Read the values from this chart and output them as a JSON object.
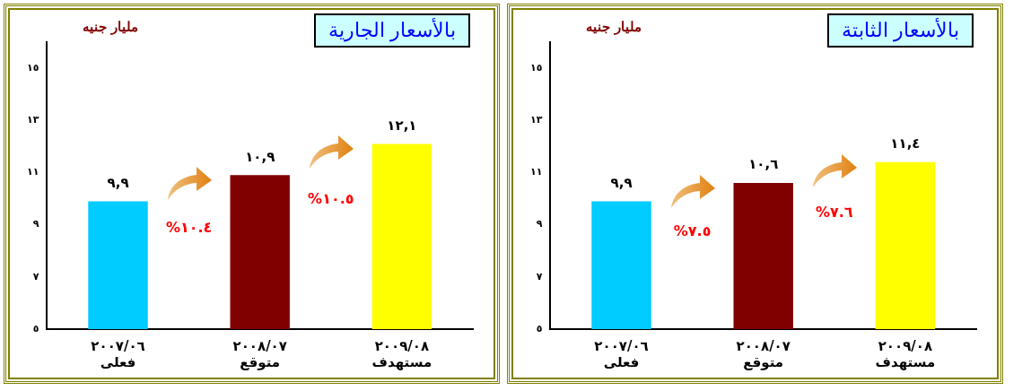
{
  "chart_data": [
    {
      "type": "bar",
      "title": "بالأسعار الجارية",
      "ylabel": "مليار جنيه",
      "categories": [
        "٢٠٠٧/٠٦\nفعلى",
        "٢٠٠٨/٠٧\nمتوقع",
        "٢٠٠٩/٠٨\nمستهدف"
      ],
      "values": [
        9.9,
        10.9,
        12.1
      ],
      "value_labels": [
        "٩,٩",
        "١٠,٩",
        "١٢,١"
      ],
      "colors": [
        "#00ccff",
        "#800000",
        "#ffff00"
      ],
      "ylim": [
        5,
        16
      ],
      "yticks": [
        {
          "value": 5,
          "label": "٥"
        },
        {
          "value": 7,
          "label": "٧"
        },
        {
          "value": 9,
          "label": "٩"
        },
        {
          "value": 11,
          "label": "١١"
        },
        {
          "value": 13,
          "label": "١٣"
        },
        {
          "value": 15,
          "label": "١٥"
        }
      ],
      "annotations": [
        "%١٠.٤",
        "%١٠.٥"
      ],
      "grid": false,
      "legend": false
    },
    {
      "type": "bar",
      "title": "بالأسعار الثابتة",
      "ylabel": "مليار جنيه",
      "categories": [
        "٢٠٠٧/٠٦\nفعلى",
        "٢٠٠٨/٠٧\nمتوقع",
        "٢٠٠٩/٠٨\nمستهدف"
      ],
      "values": [
        9.9,
        10.6,
        11.4
      ],
      "value_labels": [
        "٩,٩",
        "١٠,٦",
        "١١,٤"
      ],
      "colors": [
        "#00ccff",
        "#800000",
        "#ffff00"
      ],
      "ylim": [
        5,
        16
      ],
      "yticks": [
        {
          "value": 5,
          "label": "٥"
        },
        {
          "value": 7,
          "label": "٧"
        },
        {
          "value": 9,
          "label": "٩"
        },
        {
          "value": 11,
          "label": "١١"
        },
        {
          "value": 13,
          "label": "١٣"
        },
        {
          "value": 15,
          "label": "١٥"
        }
      ],
      "annotations": [
        "%٧.٥",
        "%٧.٦"
      ],
      "grid": false,
      "legend": false
    }
  ]
}
